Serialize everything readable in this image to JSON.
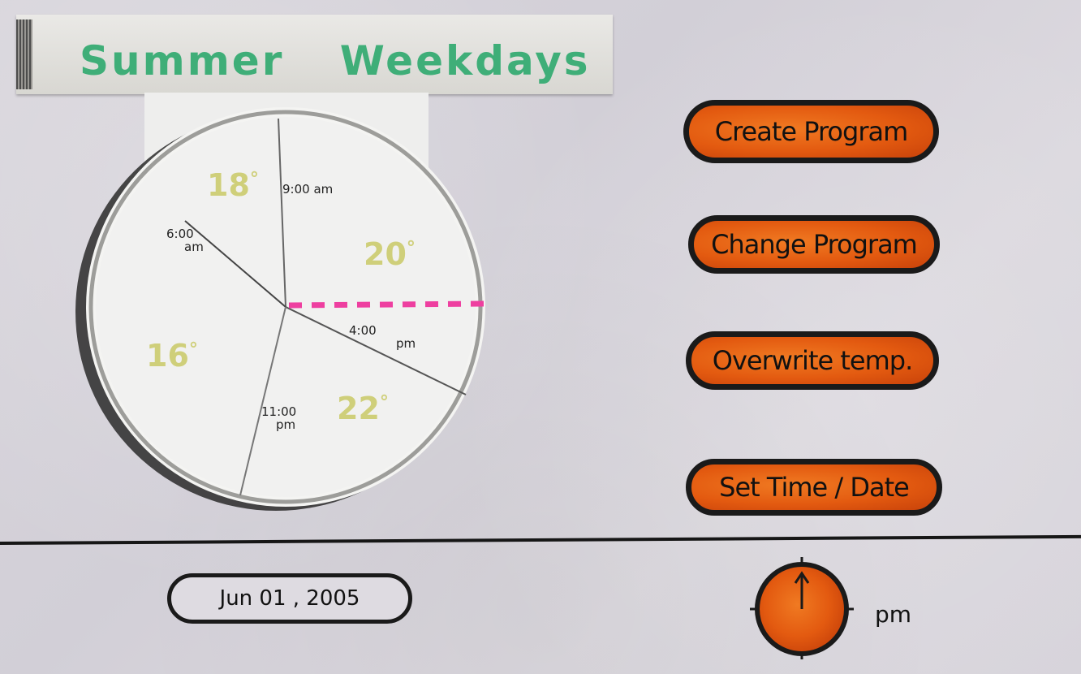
{
  "header": {
    "title": "Summer   Weekdays"
  },
  "schedule_dial": {
    "time_labels": {
      "t_600": {
        "line1": "6:00",
        "line2": "am"
      },
      "t_900": {
        "line1": "9:00 am"
      },
      "t_400": {
        "line1": "4:00",
        "line2": "pm"
      },
      "t_1100": {
        "line1": "11:00",
        "line2": "pm"
      }
    },
    "temperatures": {
      "morning": "18",
      "day": "20",
      "evening": "22",
      "night": "16"
    },
    "degree_symbol": "°",
    "indicator_color": "#ee3fa0",
    "temp_color": "#cfcf7a"
  },
  "actions": {
    "create_program": "Create  Program",
    "change_program": "Change Program",
    "overwrite_temp": "Overwrite temp.",
    "set_time_date": "Set Time / Date"
  },
  "footer": {
    "date": "Jun 01 , 2005",
    "ampm": "pm",
    "accent_color": "#e35a10"
  }
}
